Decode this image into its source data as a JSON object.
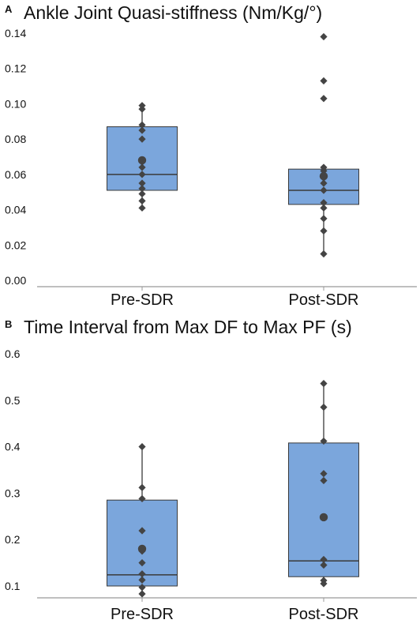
{
  "chart_data": [
    {
      "type": "box",
      "panel": "A",
      "title": "Ankle Joint Quasi-stiffness (Nm/Kg/°)",
      "ylim": [
        0,
        0.14
      ],
      "yticks": [
        "0.00",
        "0.02",
        "0.04",
        "0.06",
        "0.08",
        "0.10",
        "0.12",
        "0.14"
      ],
      "ytick_values": [
        0,
        0.02,
        0.04,
        0.06,
        0.08,
        0.1,
        0.12,
        0.14
      ],
      "categories": [
        "Pre-SDR",
        "Post-SDR"
      ],
      "box_color": "#7ba6dc",
      "point_color": "#444444",
      "boxes": [
        {
          "q1": 0.051,
          "median": 0.06,
          "q3": 0.087,
          "whisker_low": 0.041,
          "whisker_high": 0.099,
          "mean": 0.068,
          "points": [
            0.041,
            0.045,
            0.049,
            0.052,
            0.055,
            0.06,
            0.064,
            0.067,
            0.068,
            0.08,
            0.085,
            0.088,
            0.097,
            0.099
          ]
        },
        {
          "q1": 0.043,
          "median": 0.051,
          "q3": 0.063,
          "whisker_low": 0.015,
          "whisker_high": 0.064,
          "mean": 0.059,
          "points": [
            0.015,
            0.028,
            0.035,
            0.041,
            0.044,
            0.051,
            0.055,
            0.058,
            0.06,
            0.062,
            0.064,
            0.103,
            0.113,
            0.138
          ]
        }
      ]
    },
    {
      "type": "box",
      "panel": "B",
      "title": "Time Interval from Max DF to Max PF (s)",
      "ylim": [
        0.1,
        0.6
      ],
      "yticks": [
        "0.1",
        "0.2",
        "0.3",
        "0.4",
        "0.5",
        "0.6"
      ],
      "ytick_values": [
        0.1,
        0.2,
        0.3,
        0.4,
        0.5,
        0.6
      ],
      "categories": [
        "Pre-SDR",
        "Post-SDR"
      ],
      "box_color": "#7ba6dc",
      "point_color": "#444444",
      "boxes": [
        {
          "q1": 0.1,
          "median": 0.124,
          "q3": 0.285,
          "whisker_low": 0.083,
          "whisker_high": 0.4,
          "mean": 0.18,
          "points": [
            0.083,
            0.097,
            0.113,
            0.126,
            0.15,
            0.175,
            0.219,
            0.288,
            0.312,
            0.4
          ]
        },
        {
          "q1": 0.12,
          "median": 0.154,
          "q3": 0.408,
          "whisker_low": 0.105,
          "whisker_high": 0.536,
          "mean": 0.248,
          "points": [
            0.105,
            0.112,
            0.145,
            0.157,
            0.327,
            0.342,
            0.412,
            0.485,
            0.536
          ]
        }
      ]
    }
  ]
}
